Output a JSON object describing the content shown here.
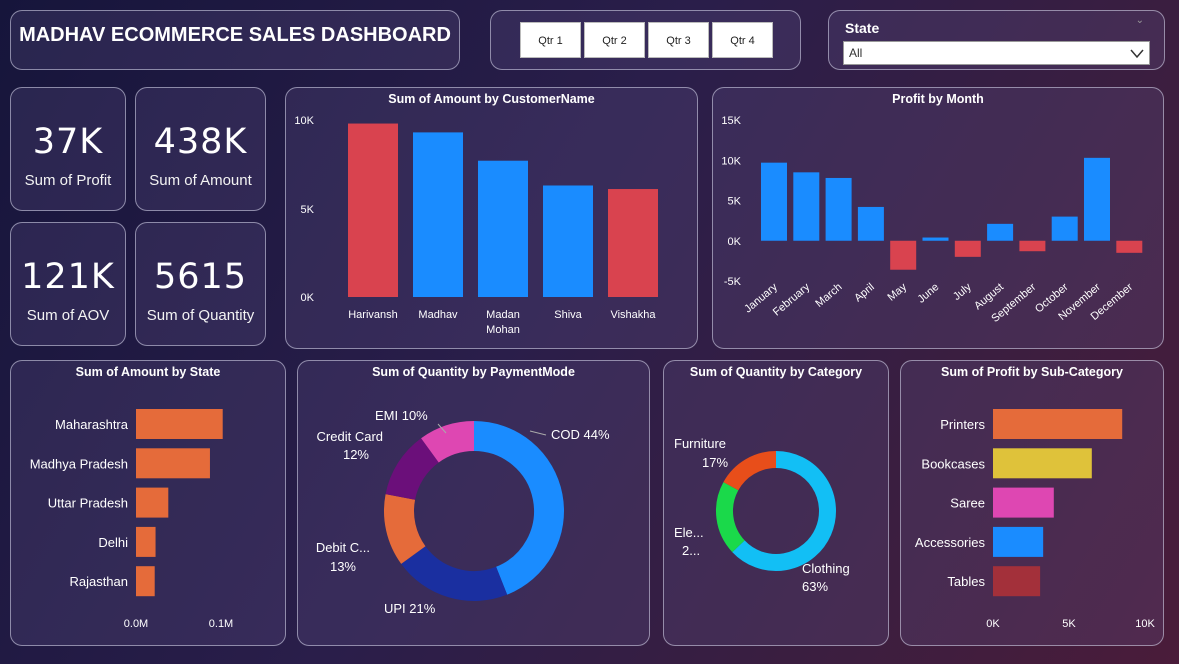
{
  "header": {
    "title": "MADHAV ECOMMERCE SALES DASHBOARD"
  },
  "quarters": [
    "Qtr 1",
    "Qtr 2",
    "Qtr 3",
    "Qtr 4"
  ],
  "state_filter": {
    "label": "State",
    "value": "All"
  },
  "kpis": [
    {
      "value": "37K",
      "label": "Sum of Profit"
    },
    {
      "value": "438K",
      "label": "Sum of Amount"
    },
    {
      "value": "121K",
      "label": "Sum of AOV"
    },
    {
      "value": "5615",
      "label": "Sum of Quantity"
    }
  ],
  "colors": {
    "blue": "#1a8cff",
    "red": "#d9434f",
    "orange": "#e56b3a"
  },
  "chart_data": [
    {
      "id": "customer",
      "type": "bar",
      "title": "Sum of Amount by CustomerName",
      "categories": [
        "Harivansh",
        "Madhav",
        "Madan Mohan",
        "Shiva",
        "Vishakha"
      ],
      "values": [
        9800,
        9300,
        7700,
        6300,
        6100
      ],
      "colors": [
        "#d9434f",
        "#1a8cff",
        "#1a8cff",
        "#1a8cff",
        "#d9434f"
      ],
      "ylim": [
        0,
        10000
      ],
      "yticks": [
        "10K",
        "5K",
        "0K"
      ]
    },
    {
      "id": "month",
      "type": "bar",
      "title": "Profit by Month",
      "categories": [
        "January",
        "February",
        "March",
        "April",
        "May",
        "June",
        "July",
        "August",
        "September",
        "October",
        "November",
        "December"
      ],
      "values": [
        9700,
        8500,
        7800,
        4200,
        -3600,
        400,
        -2000,
        2100,
        -1300,
        3000,
        10300,
        -1500
      ],
      "ylim": [
        -5000,
        15000
      ],
      "yticks": [
        "15K",
        "10K",
        "5K",
        "0K",
        "-5K"
      ]
    },
    {
      "id": "state",
      "type": "bar",
      "title": "Sum of Amount by State",
      "categories": [
        "Maharashtra",
        "Madhya Pradesh",
        "Uttar Pradesh",
        "Delhi",
        "Rajasthan"
      ],
      "values": [
        0.102,
        0.087,
        0.038,
        0.023,
        0.022
      ],
      "xlim": [
        0,
        0.1
      ],
      "xticks": [
        "0.0M",
        "0.1M"
      ]
    },
    {
      "id": "payment",
      "type": "pie",
      "title": "Sum of Quantity by PaymentMode",
      "slices": [
        {
          "label": "COD 44%",
          "value": 44,
          "color": "#1a8cff"
        },
        {
          "label": "UPI 21%",
          "value": 21,
          "color": "#1a2fa0"
        },
        {
          "label": "Debit C...",
          "label2": "13%",
          "value": 13,
          "color": "#e56b3a"
        },
        {
          "label": "Credit Card",
          "label2": "12%",
          "value": 12,
          "color": "#6b0f7a"
        },
        {
          "label": "EMI 10%",
          "value": 10,
          "color": "#de47b2"
        }
      ]
    },
    {
      "id": "category",
      "type": "pie",
      "title": "Sum of Quantity by Category",
      "slices": [
        {
          "label": "Clothing",
          "label2": "63%",
          "value": 63,
          "color": "#12bff5"
        },
        {
          "label": "Ele...",
          "label2": "2...",
          "value": 20,
          "color": "#1ad94a"
        },
        {
          "label": "Furniture",
          "label2": "17%",
          "value": 17,
          "color": "#e84e1a"
        }
      ]
    },
    {
      "id": "subcat",
      "type": "bar",
      "title": "Sum of Profit by Sub-Category",
      "categories": [
        "Printers",
        "Bookcases",
        "Saree",
        "Accessories",
        "Tables"
      ],
      "values": [
        8500,
        6500,
        4000,
        3300,
        3100
      ],
      "colors": [
        "#e56b3a",
        "#dfc23a",
        "#de47b2",
        "#1a8cff",
        "#a3303a"
      ],
      "xlim": [
        0,
        10000
      ],
      "xticks": [
        "0K",
        "5K",
        "10K"
      ]
    }
  ]
}
